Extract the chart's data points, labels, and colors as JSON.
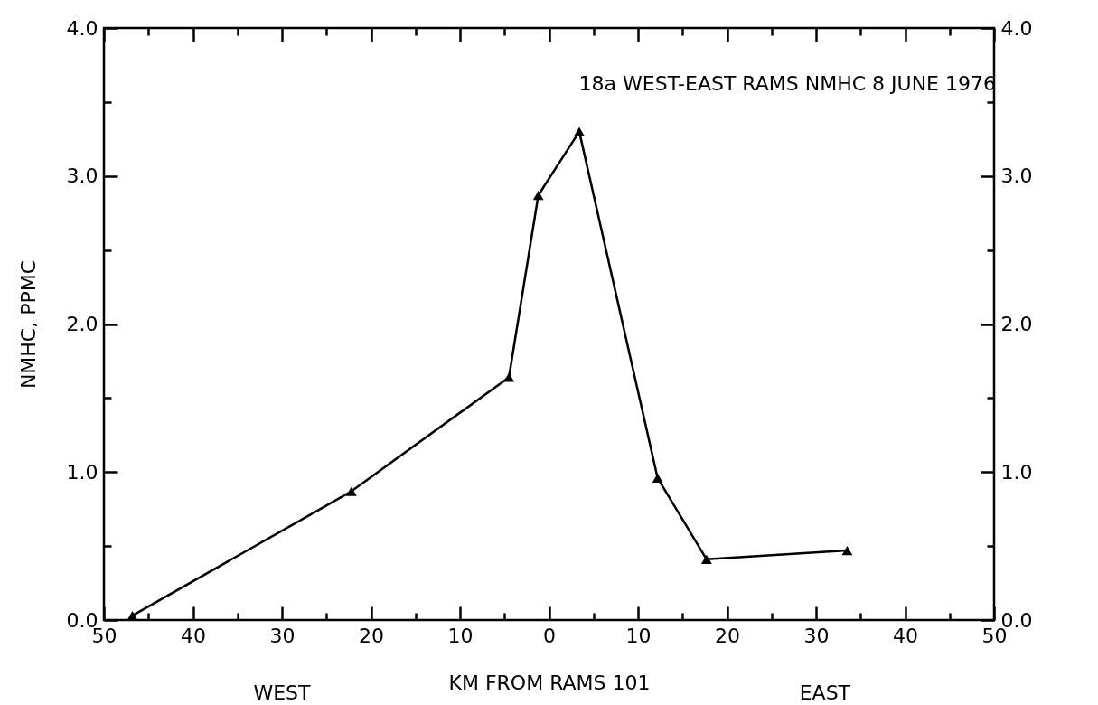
{
  "chart_data": {
    "type": "line",
    "title": "18a WEST-EAST RAMS NMHC 8 JUNE 1976",
    "xlabel": "KM FROM RAMS 101",
    "ylabel": "NMHC, PPMC",
    "annotations": [
      "WEST",
      "EAST"
    ],
    "x": [
      -46.8,
      -22.2,
      -4.5,
      -1.2,
      3.4,
      12.2,
      17.7,
      33.5
    ],
    "series": [
      {
        "color": "#000000",
        "values": [
          0.03,
          0.87,
          1.64,
          2.87,
          3.3,
          0.96,
          0.41,
          0.47
        ]
      }
    ],
    "marker": "triangle",
    "line_style": "solid",
    "grid": false,
    "legend": false,
    "xlim": [
      -50,
      50
    ],
    "xticks": [
      {
        "value": -50,
        "label": "50"
      },
      {
        "value": -45,
        "label": null
      },
      {
        "value": -40,
        "label": "40"
      },
      {
        "value": -35,
        "label": null
      },
      {
        "value": -30,
        "label": "30"
      },
      {
        "value": -25,
        "label": null
      },
      {
        "value": -20,
        "label": "20"
      },
      {
        "value": -15,
        "label": null
      },
      {
        "value": -10,
        "label": "10"
      },
      {
        "value": -5,
        "label": null
      },
      0,
      {
        "value": 5,
        "label": null
      },
      10,
      {
        "value": 15,
        "label": null
      },
      20,
      {
        "value": 25,
        "label": null
      },
      30,
      {
        "value": 35,
        "label": null
      },
      40,
      {
        "value": 45,
        "label": null
      },
      50
    ],
    "ylim": [
      0,
      4
    ],
    "yticks": [
      {
        "value": 0,
        "label": "0.0"
      },
      {
        "value": 0.5,
        "label": null
      },
      {
        "value": 1,
        "label": "1.0"
      },
      {
        "value": 1.5,
        "label": null
      },
      {
        "value": 2,
        "label": "2.0"
      },
      {
        "value": 2.5,
        "label": null
      },
      {
        "value": 3,
        "label": "3.0"
      },
      {
        "value": 3.5,
        "label": null
      },
      {
        "value": 4,
        "label": "4.0"
      }
    ],
    "y2lim": [
      0,
      4
    ],
    "y2ticks": [
      {
        "value": 0,
        "label": "0.0"
      },
      {
        "value": 0.5,
        "label": null
      },
      {
        "value": 1,
        "label": "1.0"
      },
      {
        "value": 1.5,
        "label": null
      },
      {
        "value": 2,
        "label": "2.0"
      },
      {
        "value": 2.5,
        "label": null
      },
      {
        "value": 3,
        "label": "3.0"
      },
      {
        "value": 3.5,
        "label": null
      },
      {
        "value": 4,
        "label": "4.0"
      }
    ]
  }
}
